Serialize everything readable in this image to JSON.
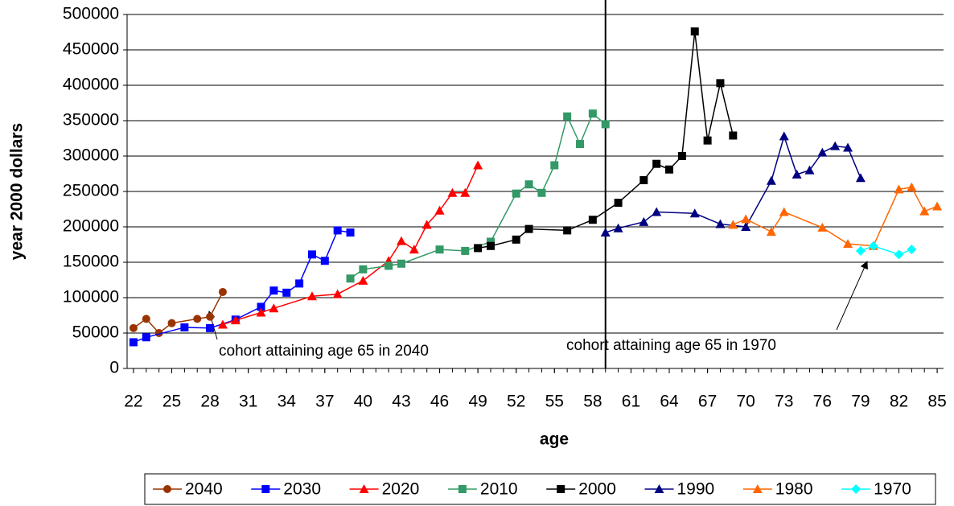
{
  "chart_data": {
    "type": "line",
    "x_label": "age",
    "y_label": "year 2000 dollars",
    "xlim": [
      21.5,
      85.5
    ],
    "xticks": [
      22,
      25,
      28,
      31,
      34,
      37,
      40,
      43,
      46,
      49,
      52,
      55,
      58,
      61,
      64,
      67,
      70,
      73,
      76,
      79,
      82,
      85
    ],
    "ylim": [
      0,
      500000
    ],
    "yticks": [
      0,
      50000,
      100000,
      150000,
      200000,
      250000,
      300000,
      350000,
      400000,
      450000,
      500000
    ],
    "grid": true,
    "legend": "bottom",
    "vline": 59,
    "annotations": [
      {
        "text": "cohort attaining age 65 in 2040"
      },
      {
        "text": "cohort attaining age 65 in 1970"
      }
    ],
    "series": [
      {
        "name": "2040",
        "color": "#993300",
        "marker": "circle",
        "x": [
          22,
          23,
          24,
          25,
          27,
          28,
          29
        ],
        "values": [
          57000,
          70000,
          50000,
          64000,
          70000,
          73000,
          108000
        ]
      },
      {
        "name": "2030",
        "color": "#0000ff",
        "marker": "square",
        "x": [
          22,
          23,
          26,
          28,
          30,
          32,
          33,
          34,
          35,
          36,
          37,
          38,
          39
        ],
        "values": [
          37000,
          44000,
          58000,
          57000,
          69000,
          87000,
          110000,
          107000,
          120000,
          161000,
          152000,
          195000,
          192000
        ]
      },
      {
        "name": "2020",
        "color": "#ff0000",
        "marker": "triangle",
        "x": [
          29,
          30,
          32,
          33,
          36,
          38,
          40,
          42,
          43,
          44,
          45,
          46,
          47,
          48,
          49
        ],
        "values": [
          62000,
          68000,
          79000,
          85000,
          102000,
          105000,
          124000,
          152000,
          180000,
          168000,
          203000,
          223000,
          248000,
          248000,
          287000
        ]
      },
      {
        "name": "2010",
        "color": "#339966",
        "marker": "square",
        "x": [
          39,
          40,
          42,
          43,
          46,
          48,
          50,
          52,
          53,
          54,
          55,
          56,
          57,
          58,
          59
        ],
        "values": [
          127000,
          140000,
          145000,
          148000,
          168000,
          166000,
          179000,
          247000,
          260000,
          248000,
          287000,
          356000,
          317000,
          360000,
          345000
        ]
      },
      {
        "name": "2000",
        "color": "#000000",
        "marker": "square",
        "x": [
          49,
          50,
          52,
          53,
          56,
          58,
          60,
          62,
          63,
          64,
          65,
          66,
          67,
          68,
          69
        ],
        "values": [
          170000,
          173000,
          182000,
          197000,
          195000,
          210000,
          234000,
          266000,
          289000,
          281000,
          300000,
          476000,
          322000,
          403000,
          329000
        ]
      },
      {
        "name": "1990",
        "color": "#000080",
        "marker": "triangle",
        "x": [
          59,
          60,
          62,
          63,
          66,
          68,
          70,
          72,
          73,
          74,
          75,
          76,
          77,
          78,
          79
        ],
        "values": [
          192000,
          198000,
          207000,
          221000,
          219000,
          204000,
          200000,
          265000,
          328000,
          274000,
          280000,
          305000,
          314000,
          312000,
          269000
        ]
      },
      {
        "name": "1980",
        "color": "#ff6600",
        "marker": "triangle",
        "x": [
          69,
          70,
          72,
          73,
          76,
          78,
          80,
          82,
          83,
          84,
          85
        ],
        "values": [
          203000,
          211000,
          193000,
          221000,
          199000,
          176000,
          173000,
          253000,
          256000,
          222000,
          229000
        ]
      },
      {
        "name": "1970",
        "color": "#00ffff",
        "marker": "diamond",
        "x": [
          79,
          80,
          82,
          83
        ],
        "values": [
          166000,
          173000,
          161000,
          168000
        ]
      }
    ]
  }
}
